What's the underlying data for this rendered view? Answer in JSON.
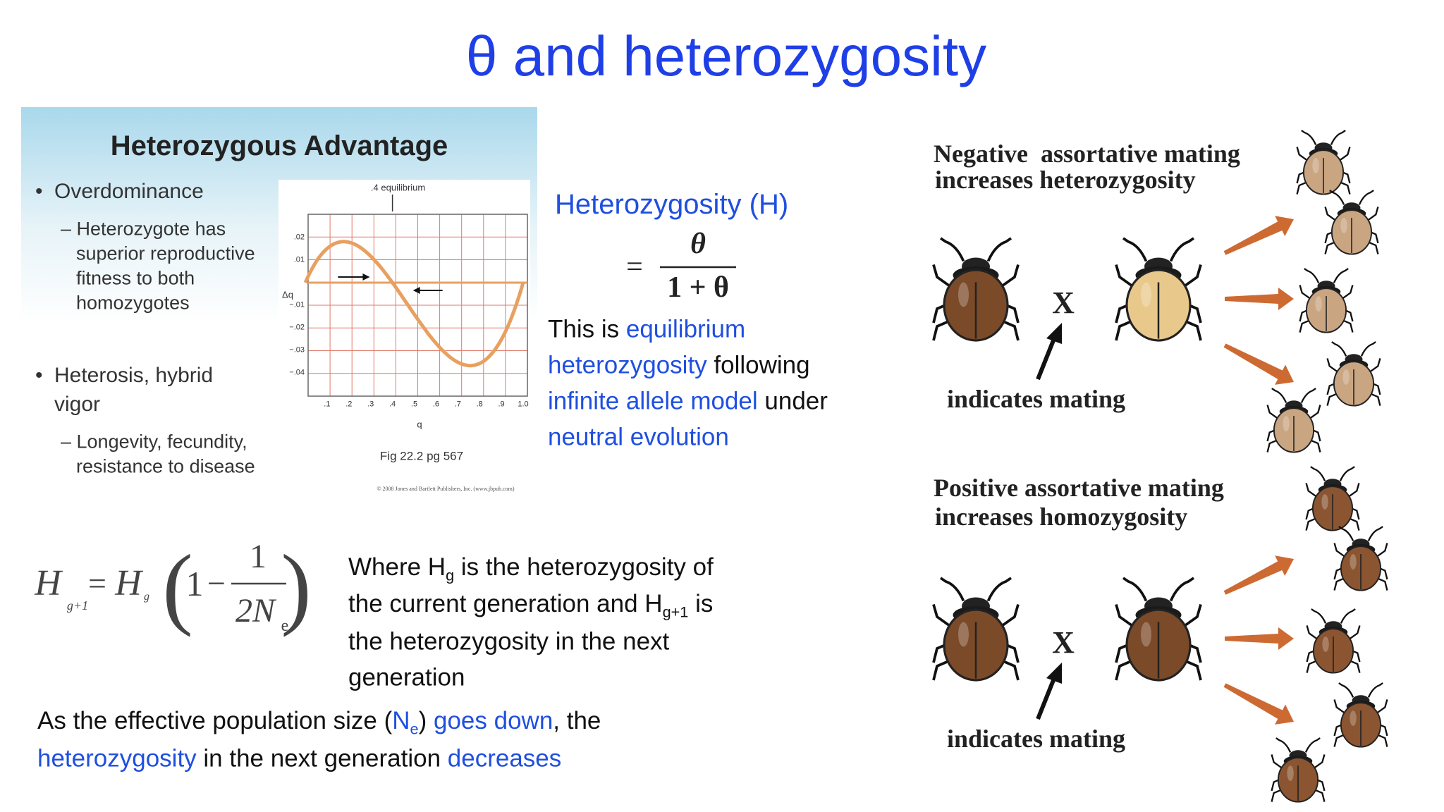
{
  "title": "θ and heterozygosity",
  "figure": {
    "heading": "Heterozygous Advantage",
    "bullets": [
      {
        "lines": [
          "Overdominance"
        ],
        "detail": [
          "– Heterozygote has",
          "superior reproductive",
          "fitness to both",
          "homozygotes"
        ]
      },
      {
        "lines": [
          "Heterosis, hybrid",
          "vigor"
        ],
        "detail": [
          "– Longevity, fecundity,",
          "resistance to disease"
        ]
      }
    ],
    "graph": {
      "annotation": ".4 equilibrium",
      "y_label": "Δq",
      "y_ticks": [
        ".02",
        ".01",
        "−.01",
        "−.02",
        "−.03",
        "−.04"
      ],
      "x_ticks": [
        ".1",
        ".2",
        ".3",
        ".4",
        ".5",
        ".6",
        ".7",
        ".8",
        ".9",
        "1.0"
      ],
      "x_label": "q",
      "caption": "Fig 22.2 pg 567",
      "credit": "© 2008 Jones and Bartlett Publishers, Inc. (www.jbpub.com)"
    }
  },
  "definition": {
    "label": "Heterozygosity (H)",
    "equals": "=",
    "numerator": "θ",
    "denominator": "1 + θ",
    "lines": [
      [
        {
          "text": "This is "
        },
        {
          "text": "equilibrium",
          "color": "#1f4fe0"
        }
      ],
      [
        {
          "text": "heterozygosity",
          "color": "#1f4fe0"
        },
        {
          "text": " following"
        }
      ],
      [
        {
          "text": "infinite allele model",
          "color": "#1f4fe0"
        },
        {
          "text": " under"
        }
      ],
      [
        {
          "text": "neutral evolution",
          "color": "#1f4fe0"
        }
      ]
    ]
  },
  "recurrence": {
    "formula": {
      "h1": "H",
      "s1": "g+1",
      "eq": "=",
      "h2": "H",
      "s2": "g",
      "open": "(",
      "one": "1",
      "minus": "−",
      "num": "1",
      "den": "2N",
      "den_sub": "e",
      "close": ")"
    },
    "lines": [
      [
        {
          "text": "Where H"
        },
        {
          "text": "g",
          "sub": true
        },
        {
          "text": " is the heterozygosity of"
        }
      ],
      [
        {
          "text": "the current generation and H"
        },
        {
          "text": "g+1",
          "sub": true
        },
        {
          "text": " is"
        }
      ],
      [
        {
          "text": "the heterozygosity in the next"
        }
      ],
      [
        {
          "text": "generation"
        }
      ]
    ]
  },
  "conclusion": {
    "lines": [
      [
        {
          "text": "As the effective population size ("
        },
        {
          "text": "N",
          "color": "#1f4fe0"
        },
        {
          "text": "e",
          "sub": true,
          "color": "#1f4fe0"
        },
        {
          "text": ")"
        },
        {
          "text": " goes down",
          "color": "#1f4fe0"
        },
        {
          "text": ", the"
        }
      ],
      [
        {
          "text": "heterozygosity",
          "color": "#1f4fe0"
        },
        {
          "text": " in the next generation "
        },
        {
          "text": "decreases",
          "color": "#1f4fe0"
        }
      ]
    ]
  },
  "mating": {
    "panels": [
      {
        "heading": [
          "Negative  assortative mating",
          "increases heterozygosity"
        ],
        "cross": "X",
        "note": "indicates mating"
      },
      {
        "heading": [
          "Positive assortative mating",
          "increases homozygosity"
        ],
        "cross": "X",
        "note": "indicates mating"
      }
    ]
  }
}
